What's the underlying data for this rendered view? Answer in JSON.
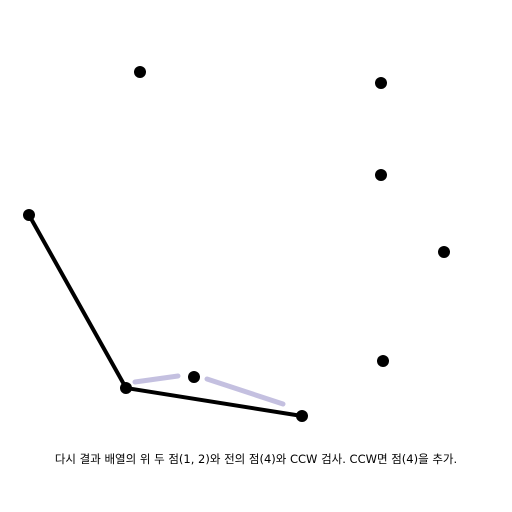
{
  "caption": "다시 결과 배열의 위 두 점(1, 2)와 전의 점(4)와 CCW 검사. CCW면 점(4)을 추가.",
  "colors": {
    "background": "#ffffff",
    "point": "#000000",
    "hull_edge": "#000000",
    "candidate_edge": "#c4c0e0"
  },
  "point_count": 9,
  "hull_edge_count": 2,
  "candidate_edge_count": 2
}
